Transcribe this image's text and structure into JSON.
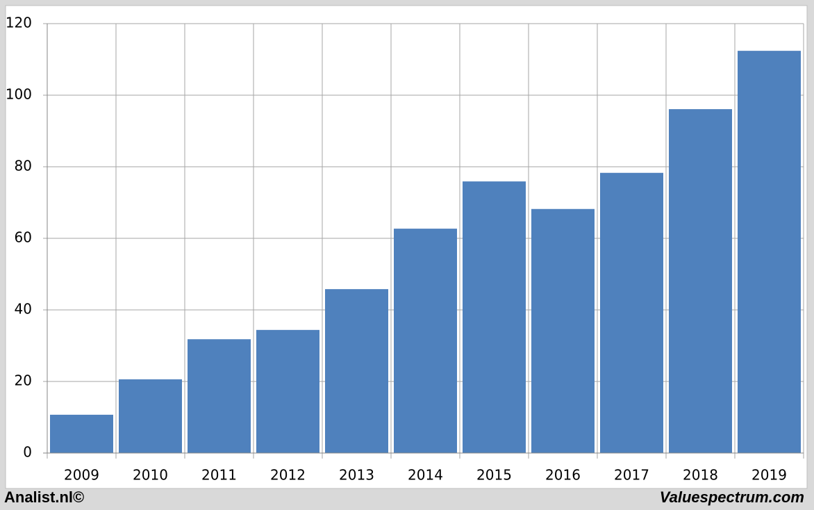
{
  "chart_data": {
    "type": "bar",
    "categories": [
      "2009",
      "2010",
      "2011",
      "2012",
      "2013",
      "2014",
      "2015",
      "2016",
      "2017",
      "2018",
      "2019"
    ],
    "values": [
      10.7,
      20.6,
      31.8,
      34.4,
      45.8,
      62.7,
      75.9,
      68.2,
      78.3,
      96.1,
      112.4
    ],
    "color": "#4f81bd",
    "ylim": [
      0,
      120
    ],
    "yticks": [
      0,
      20,
      40,
      60,
      80,
      100,
      120
    ],
    "grid": true,
    "footer_left": "Analist.nl©",
    "footer_right": "Valuespectrum.com"
  }
}
